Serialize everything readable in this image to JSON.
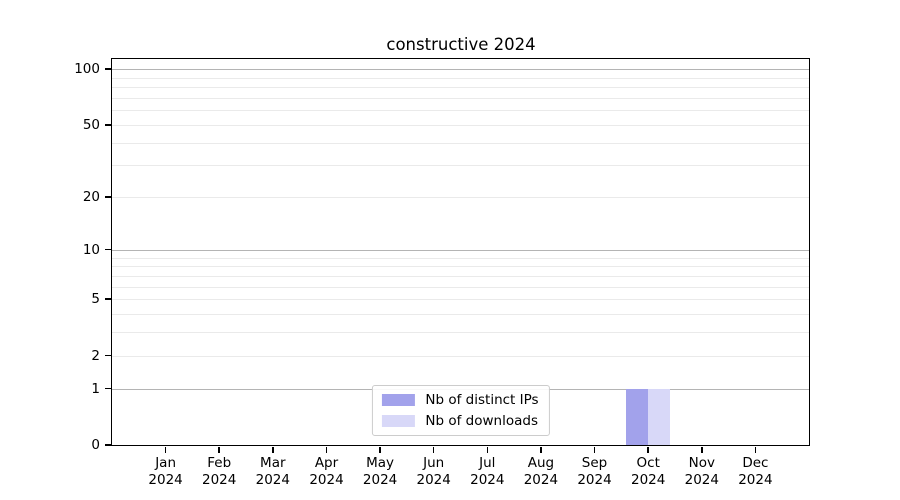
{
  "title": "constructive 2024",
  "chart_data": {
    "type": "bar",
    "categories": [
      "Jan 2024",
      "Feb 2024",
      "Mar 2024",
      "Apr 2024",
      "May 2024",
      "Jun 2024",
      "Jul 2024",
      "Aug 2024",
      "Sep 2024",
      "Oct 2024",
      "Nov 2024",
      "Dec 2024"
    ],
    "series": [
      {
        "name": "Nb of distinct IPs",
        "color": "#a2a2eb",
        "values": [
          0,
          0,
          0,
          0,
          0,
          0,
          0,
          0,
          0,
          1,
          0,
          0
        ]
      },
      {
        "name": "Nb of downloads",
        "color": "#d8d8f8",
        "values": [
          0,
          0,
          0,
          0,
          0,
          0,
          0,
          0,
          0,
          1,
          0,
          0
        ]
      }
    ],
    "title": "constructive 2024",
    "xlabel": "",
    "ylabel": "",
    "y_axis": {
      "scale": "log1p",
      "tick_labels": [
        0,
        1,
        2,
        5,
        10,
        20,
        50,
        100
      ],
      "major_gridlines": [
        1,
        10,
        100
      ],
      "minor_gridlines": [
        2,
        3,
        4,
        5,
        6,
        7,
        8,
        9,
        20,
        30,
        40,
        50,
        60,
        70,
        80,
        90
      ],
      "ylim": [
        0,
        112
      ]
    },
    "legend": {
      "position": "lower center",
      "entries": [
        "Nb of distinct IPs",
        "Nb of downloads"
      ]
    },
    "grid": true
  },
  "colors": {
    "major_grid": "#b4b4b4",
    "minor_grid": "#eaeaea",
    "axis": "#000000",
    "background": "#ffffff"
  }
}
